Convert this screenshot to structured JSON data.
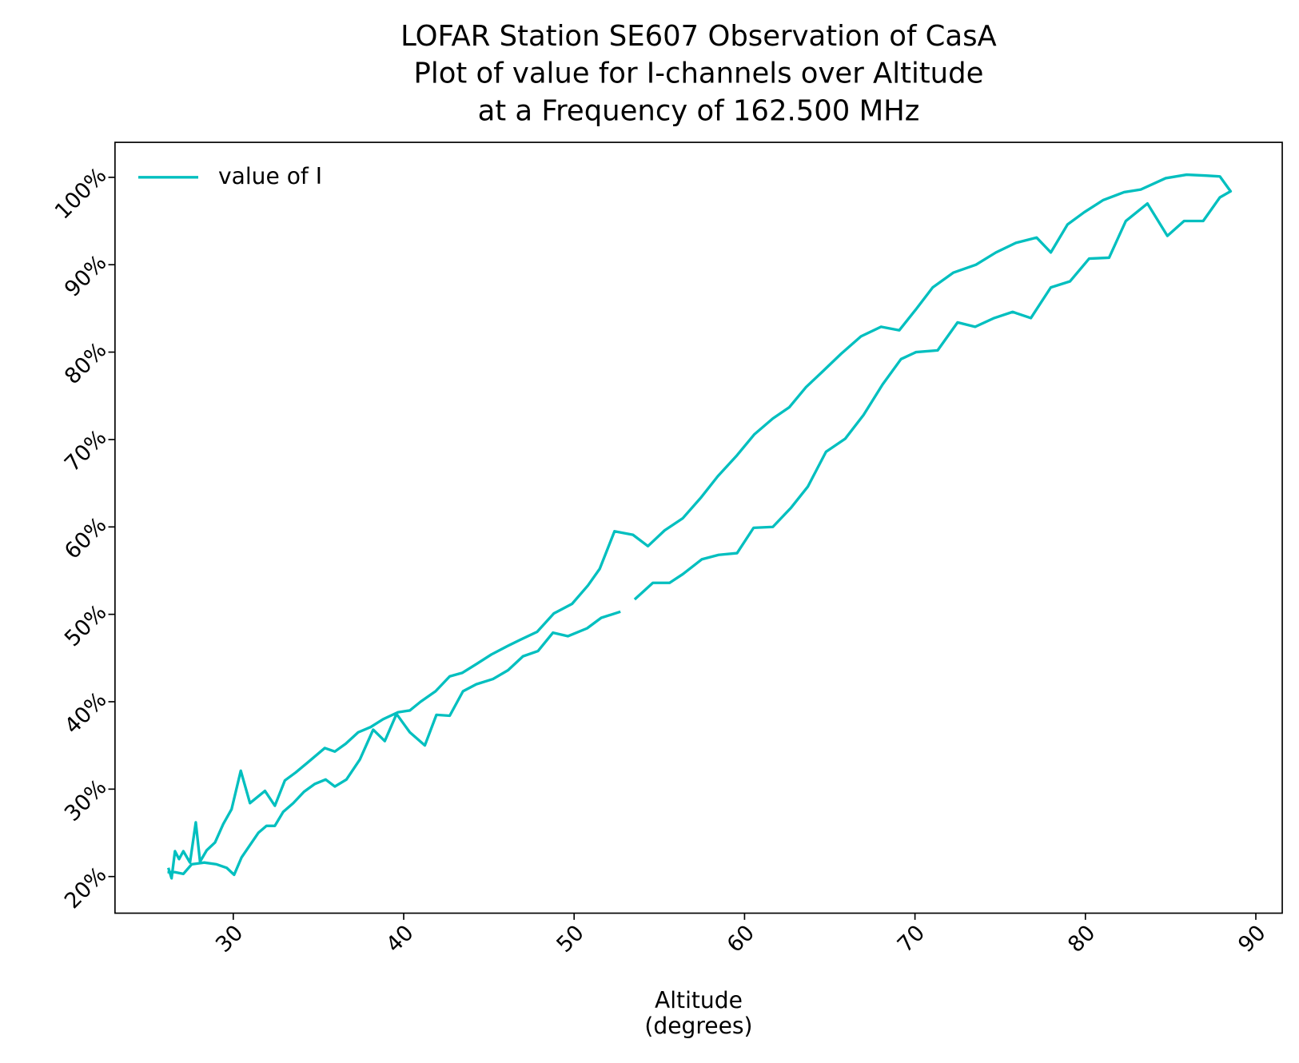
{
  "chart_data": {
    "type": "line",
    "title": [
      "LOFAR Station SE607 Observation of CasA",
      "Plot of value for I-channels over Altitude",
      "at a Frequency of 162.500 MHz"
    ],
    "xlabel": [
      "Altitude",
      "(degrees)"
    ],
    "xlim": [
      23.06,
      91.55
    ],
    "ylim": [
      15.81,
      104.0
    ],
    "xticks": [
      30,
      40,
      50,
      60,
      70,
      80,
      90
    ],
    "yticks": [
      {
        "value": 20,
        "label": "20%"
      },
      {
        "value": 30,
        "label": "30%"
      },
      {
        "value": 40,
        "label": "40%"
      },
      {
        "value": 50,
        "label": "50%"
      },
      {
        "value": 60,
        "label": "60%"
      },
      {
        "value": 70,
        "label": "70%"
      },
      {
        "value": 80,
        "label": "80%"
      },
      {
        "value": 90,
        "label": "90%"
      },
      {
        "value": 100,
        "label": "100%"
      }
    ],
    "legend": "upper left",
    "series": [
      {
        "name": "value of I",
        "color": "#00bfbf",
        "x": [
          26.14,
          26.58,
          27.07,
          27.56,
          28.29,
          29.02,
          29.61,
          30.05,
          30.49,
          31.47,
          31.95,
          32.44,
          32.93,
          33.52,
          34.15,
          34.79,
          35.42,
          35.96,
          36.64,
          37.43,
          38.21,
          38.89,
          39.58,
          40.36,
          41.24,
          41.92,
          42.7,
          43.48,
          44.26,
          45.24,
          46.12,
          47.0,
          47.88,
          48.76,
          49.64,
          50.76,
          51.59,
          52.72,
          null,
          53.55,
          54.62,
          55.6,
          56.38,
          57.5,
          58.48,
          59.56,
          60.53,
          61.66,
          62.73,
          63.71,
          64.78,
          65.91,
          66.98,
          68.1,
          69.18,
          70.06,
          71.33,
          72.5,
          73.53,
          74.65,
          75.73,
          76.8,
          77.97,
          79.1,
          80.22,
          81.39,
          82.37,
          83.64,
          84.81,
          85.79,
          86.91,
          87.89,
          88.52,
          87.89,
          87.06,
          85.94,
          84.71,
          83.25,
          82.27,
          81.05,
          79.93,
          78.95,
          77.97,
          77.14,
          75.92,
          74.75,
          73.58,
          72.26,
          71.04,
          70.06,
          69.08,
          68.01,
          66.83,
          65.66,
          64.59,
          63.61,
          62.63,
          61.66,
          60.58,
          59.56,
          58.43,
          57.46,
          56.38,
          55.31,
          54.33,
          53.45,
          52.37,
          51.5,
          50.81,
          49.88,
          48.81,
          47.83,
          46.85,
          46.02,
          45.14,
          44.26,
          43.43,
          42.7,
          41.87,
          40.99,
          40.36,
          39.67,
          38.79,
          38.06,
          37.33,
          36.6,
          35.96,
          35.37,
          34.4,
          33.66,
          33.03,
          32.44,
          31.86,
          30.98,
          30.44,
          29.9,
          29.41,
          28.93,
          28.44,
          28.05,
          27.8,
          27.46,
          27.07,
          26.82,
          26.58,
          26.38,
          26.19
        ],
        "values": [
          20.5,
          20.5,
          20.3,
          21.4,
          21.6,
          21.4,
          21.0,
          20.2,
          22.2,
          25.0,
          25.8,
          25.8,
          27.4,
          28.4,
          29.7,
          30.6,
          31.1,
          30.3,
          31.1,
          33.4,
          36.8,
          35.5,
          38.6,
          36.5,
          35.0,
          38.5,
          38.4,
          41.2,
          42.0,
          42.6,
          43.6,
          45.2,
          45.8,
          47.9,
          47.5,
          48.4,
          49.6,
          50.3,
          null,
          51.7,
          53.6,
          53.6,
          54.6,
          56.3,
          56.8,
          57.0,
          59.9,
          60.0,
          62.2,
          64.6,
          68.6,
          70.1,
          72.8,
          76.3,
          79.2,
          80.0,
          80.2,
          83.4,
          82.9,
          83.9,
          84.6,
          83.9,
          87.4,
          88.1,
          90.7,
          90.8,
          95.0,
          97.0,
          93.3,
          95.0,
          95.0,
          97.7,
          98.4,
          100.1,
          100.2,
          100.3,
          99.9,
          98.6,
          98.3,
          97.4,
          96.0,
          94.6,
          91.4,
          93.1,
          92.5,
          91.4,
          90.0,
          89.1,
          87.4,
          84.9,
          82.5,
          82.9,
          81.8,
          79.8,
          77.8,
          76.0,
          73.7,
          72.4,
          70.6,
          68.2,
          65.8,
          63.4,
          61.0,
          59.6,
          57.8,
          59.1,
          59.5,
          55.2,
          53.3,
          51.2,
          50.1,
          48.0,
          47.1,
          46.3,
          45.4,
          44.3,
          43.3,
          42.9,
          41.2,
          40.0,
          39.0,
          38.8,
          38.0,
          37.1,
          36.5,
          35.2,
          34.3,
          34.7,
          33.1,
          31.9,
          31.0,
          28.1,
          29.8,
          28.4,
          32.1,
          27.7,
          26.0,
          23.9,
          23.0,
          21.7,
          26.2,
          21.6,
          22.9,
          22.0,
          22.9,
          19.8,
          21.0
        ]
      }
    ]
  }
}
